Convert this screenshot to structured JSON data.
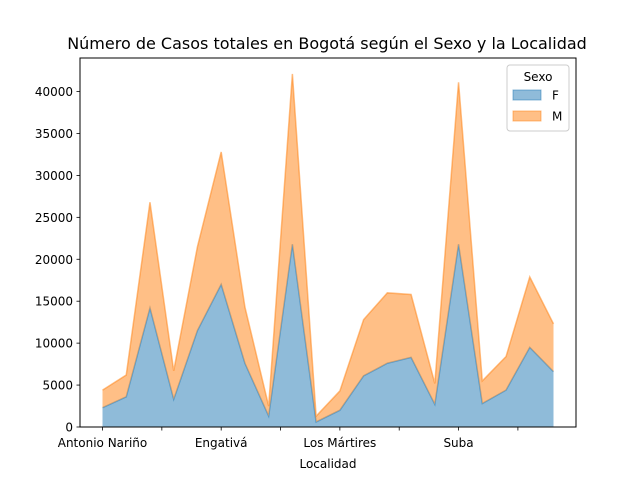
{
  "chart_data": {
    "type": "area",
    "stacked": true,
    "title": "Número de Casos totales en Bogotá según el Sexo y la Localidad",
    "xlabel": "Localidad",
    "ylabel": "",
    "ylim": [
      0,
      44000
    ],
    "yticks": [
      0,
      5000,
      10000,
      15000,
      20000,
      25000,
      30000,
      35000,
      40000
    ],
    "xtick_labels": [
      "Antonio Nariño",
      "",
      "Engativá",
      "",
      "Los Mártires",
      "",
      "Suba",
      ""
    ],
    "xtick_indices": [
      0,
      2.5,
      5,
      7.5,
      10,
      12.5,
      15,
      17.5
    ],
    "legend": {
      "title": "Sexo",
      "position": "upper-right"
    },
    "x_count": 20,
    "series": [
      {
        "name": "F",
        "color": "#1f77b4",
        "values": [
          2300,
          3600,
          14200,
          3300,
          11500,
          17000,
          7600,
          1300,
          21800,
          600,
          2000,
          6100,
          7600,
          8300,
          2700,
          21800,
          2800,
          4400,
          9500,
          6600
        ]
      },
      {
        "name": "M",
        "color": "#ff7f0e",
        "values": [
          2100,
          2600,
          12600,
          3400,
          10000,
          15800,
          6700,
          1200,
          20300,
          700,
          2300,
          6700,
          8400,
          7500,
          2500,
          19300,
          2700,
          4000,
          8400,
          5700
        ]
      }
    ]
  }
}
